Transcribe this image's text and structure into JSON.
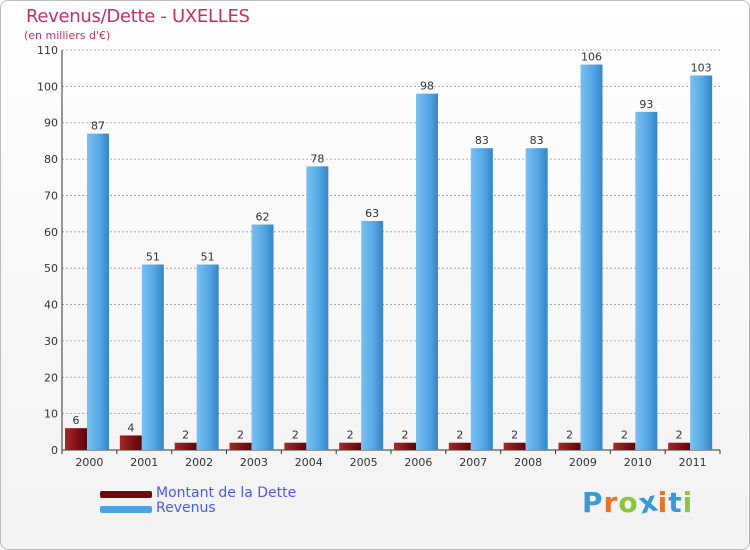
{
  "header": {
    "title": "Revenus/Dette - UXELLES",
    "subtitle": "(en milliers d'€)"
  },
  "chart_data": {
    "type": "bar",
    "categories": [
      "2000",
      "2001",
      "2002",
      "2003",
      "2004",
      "2005",
      "2006",
      "2007",
      "2008",
      "2009",
      "2010",
      "2011"
    ],
    "series": [
      {
        "name": "Montant de la Dette",
        "values": [
          6,
          4,
          2,
          2,
          2,
          2,
          2,
          2,
          2,
          2,
          2,
          2
        ],
        "color": "#7a0f14"
      },
      {
        "name": "Revenus",
        "values": [
          87,
          51,
          51,
          62,
          78,
          63,
          98,
          83,
          83,
          106,
          93,
          103
        ],
        "color": "#4da2e4"
      }
    ],
    "ylim": [
      0,
      110
    ],
    "yticks": [
      0,
      10,
      20,
      30,
      40,
      50,
      60,
      70,
      80,
      90,
      100,
      110
    ],
    "grid": true,
    "legend_position": "bottom-left"
  },
  "legend": {
    "items": [
      {
        "label": "Montant de la Dette",
        "color": "#6e0a10"
      },
      {
        "label": "Revenus",
        "color": "#4da2e4"
      }
    ]
  },
  "logo": {
    "letters": [
      "P",
      "r",
      "o",
      "x",
      "i",
      "t",
      "i"
    ],
    "colors": [
      "#3a9ad9",
      "#e8732a",
      "#8cc63f",
      "#3a9ad9",
      "#e8732a",
      "#3a9ad9",
      "#8cc63f"
    ]
  }
}
